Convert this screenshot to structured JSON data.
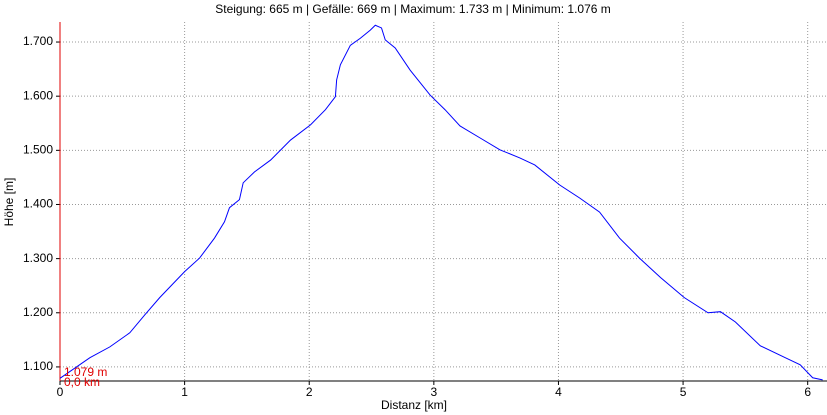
{
  "chart_data": {
    "type": "line",
    "title": "Steigung: 665 m | Gefälle: 669 m | Maximum: 1.733 m | Minimum: 1.076 m",
    "x_label": "Distanz [km]",
    "y_label": "Höhe [m]",
    "annotation": {
      "value_label": "1.079 m",
      "distance_label": "0,0 km"
    },
    "x": [
      0,
      0.24,
      0.4,
      0.56,
      0.68,
      0.8,
      1.0,
      1.12,
      1.24,
      1.32,
      1.36,
      1.44,
      1.47,
      1.56,
      1.69,
      1.85,
      2.01,
      2.13,
      2.21,
      2.22,
      2.25,
      2.33,
      2.41,
      2.49,
      2.53,
      2.58,
      2.61,
      2.69,
      2.81,
      2.97,
      3.09,
      3.21,
      3.37,
      3.53,
      3.69,
      3.81,
      4.01,
      4.17,
      4.33,
      4.49,
      4.65,
      4.82,
      5.01,
      5.2,
      5.3,
      5.42,
      5.62,
      5.82,
      5.94,
      6.04,
      6.12
    ],
    "series": [
      {
        "name": "Höhe",
        "color": "#0000ff",
        "values": [
          1079,
          1117,
          1137,
          1163,
          1196,
          1228,
          1276,
          1301,
          1338,
          1368,
          1394,
          1409,
          1440,
          1460,
          1482,
          1519,
          1547,
          1575,
          1599,
          1630,
          1658,
          1694,
          1707,
          1722,
          1731,
          1726,
          1704,
          1689,
          1648,
          1602,
          1575,
          1545,
          1523,
          1501,
          1486,
          1473,
          1436,
          1412,
          1386,
          1338,
          1301,
          1265,
          1228,
          1200,
          1202,
          1183,
          1139,
          1117,
          1104,
          1080,
          1076
        ]
      }
    ],
    "xlim": [
      0,
      6.155
    ],
    "ylim": [
      1074,
      1737
    ],
    "xticks": [
      0,
      1,
      2,
      3,
      4,
      5,
      6
    ],
    "yticks": [
      {
        "value": 1100,
        "label": "1.100"
      },
      {
        "value": 1200,
        "label": "1.200"
      },
      {
        "value": 1300,
        "label": "1.300"
      },
      {
        "value": 1400,
        "label": "1.400"
      },
      {
        "value": 1500,
        "label": "1.500"
      },
      {
        "value": 1600,
        "label": "1.600"
      },
      {
        "value": 1700,
        "label": "1.700"
      }
    ],
    "grid": true
  }
}
